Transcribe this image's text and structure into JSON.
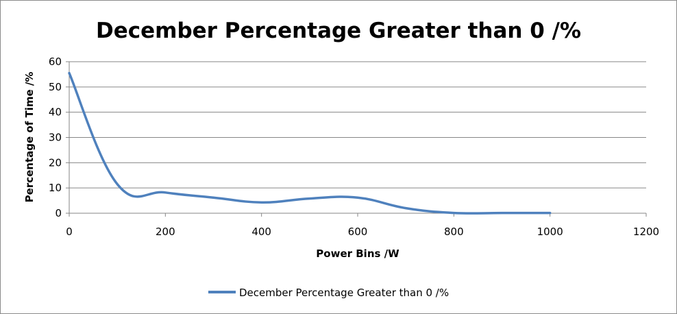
{
  "chart_data": {
    "type": "line",
    "title": "December Percentage Greater than 0 /%",
    "xlabel": "Power Bins /W",
    "ylabel": "Percentage of Time /%",
    "xlim": [
      0,
      1200
    ],
    "ylim": [
      0,
      60
    ],
    "xticks": [
      0,
      200,
      400,
      600,
      800,
      1000,
      1200
    ],
    "yticks": [
      0,
      10,
      20,
      30,
      40,
      50,
      60
    ],
    "grid": "horizontal",
    "legend_position": "bottom",
    "series": [
      {
        "name": "December Percentage Greater than 0 /%",
        "color": "#4f81bd",
        "x": [
          0,
          100,
          200,
          300,
          400,
          500,
          600,
          700,
          800,
          900,
          1000
        ],
        "y": [
          55.5,
          11.5,
          8.2,
          6.2,
          4.3,
          5.8,
          6.2,
          2.0,
          0.1,
          0.1,
          0.1
        ]
      }
    ]
  }
}
